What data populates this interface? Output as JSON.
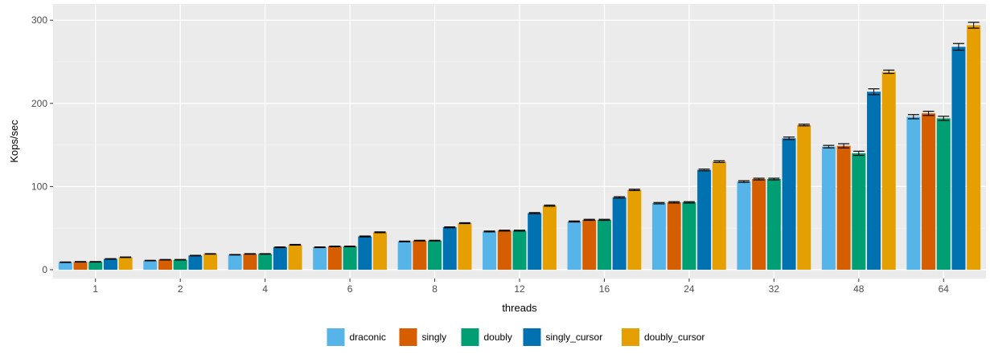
{
  "chart_data": {
    "type": "bar",
    "title": "",
    "xlabel": "threads",
    "ylabel": "Kops/sec",
    "ylim": [
      0,
      300
    ],
    "yticks": [
      0,
      100,
      200,
      300
    ],
    "grid": true,
    "legend_position": "bottom",
    "categories": [
      "1",
      "2",
      "4",
      "6",
      "8",
      "12",
      "16",
      "24",
      "32",
      "48",
      "64"
    ],
    "series": [
      {
        "name": "draconic",
        "color": "#56B4E9",
        "values": [
          9,
          11,
          18,
          27,
          34,
          46,
          58,
          80,
          106,
          148,
          184
        ],
        "errors": [
          0.3,
          0.3,
          0.3,
          0.4,
          0.4,
          0.5,
          0.6,
          0.8,
          1,
          1.5,
          2.5
        ]
      },
      {
        "name": "singly",
        "color": "#D55E00",
        "values": [
          9.5,
          12,
          19,
          28,
          35,
          47,
          60,
          81,
          109,
          149,
          188
        ],
        "errors": [
          0.3,
          0.3,
          0.3,
          0.4,
          0.4,
          0.5,
          0.6,
          0.8,
          1,
          2.5,
          2.5
        ]
      },
      {
        "name": "doubly",
        "color": "#009E73",
        "values": [
          9.5,
          12,
          19,
          28,
          35,
          47,
          60,
          81,
          109,
          140,
          182
        ],
        "errors": [
          0.3,
          0.3,
          0.3,
          0.4,
          0.4,
          0.5,
          0.6,
          0.8,
          1,
          2.5,
          2.5
        ]
      },
      {
        "name": "singly_cursor",
        "color": "#0072B2",
        "values": [
          13,
          17,
          27,
          40,
          51,
          68,
          87,
          120,
          158,
          214,
          268
        ],
        "errors": [
          0.3,
          0.3,
          0.4,
          0.5,
          0.5,
          0.7,
          0.8,
          1,
          1.5,
          3.5,
          4
        ]
      },
      {
        "name": "doubly_cursor",
        "color": "#E69F00",
        "values": [
          15,
          19,
          30,
          45,
          56,
          77,
          96,
          130,
          174,
          238,
          294
        ],
        "errors": [
          0.3,
          0.3,
          0.4,
          0.5,
          0.5,
          0.7,
          0.8,
          1,
          1,
          2,
          3.5
        ]
      }
    ]
  }
}
